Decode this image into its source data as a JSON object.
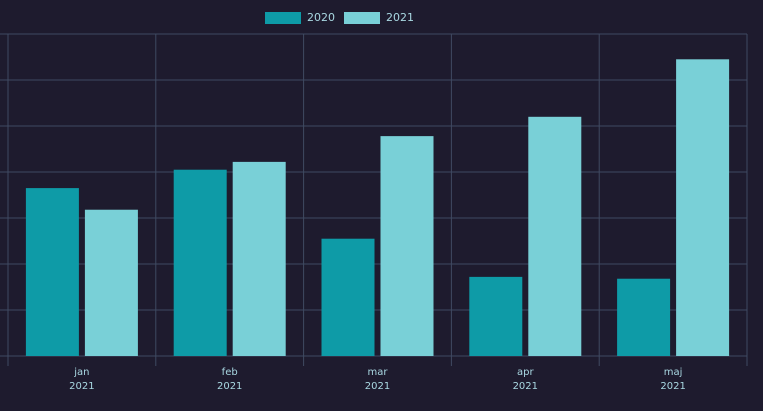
{
  "chart_data": {
    "type": "bar",
    "categories": [
      [
        "jan",
        "2021"
      ],
      [
        "feb",
        "2021"
      ],
      [
        "mar",
        "2021"
      ],
      [
        "apr",
        "2021"
      ],
      [
        "maj",
        "2021"
      ]
    ],
    "series": [
      {
        "name": "2020",
        "color": "#0e9ba7",
        "values": [
          3.65,
          4.05,
          2.55,
          1.72,
          1.68
        ]
      },
      {
        "name": "2021",
        "color": "#79d0d7",
        "values": [
          3.18,
          4.22,
          4.78,
          5.2,
          6.45
        ]
      }
    ],
    "ylim": [
      0,
      7
    ],
    "y_ticks": [
      0,
      1,
      2,
      3,
      4,
      5,
      6,
      7
    ],
    "y_tick_labels_visible": false,
    "grid": true,
    "legend": "top-center",
    "title": "",
    "xlabel": "",
    "ylabel": ""
  },
  "colors": {
    "background": "#1e1b2e",
    "grid": "#3f4a62",
    "axis_text": "#a9d8e2"
  }
}
